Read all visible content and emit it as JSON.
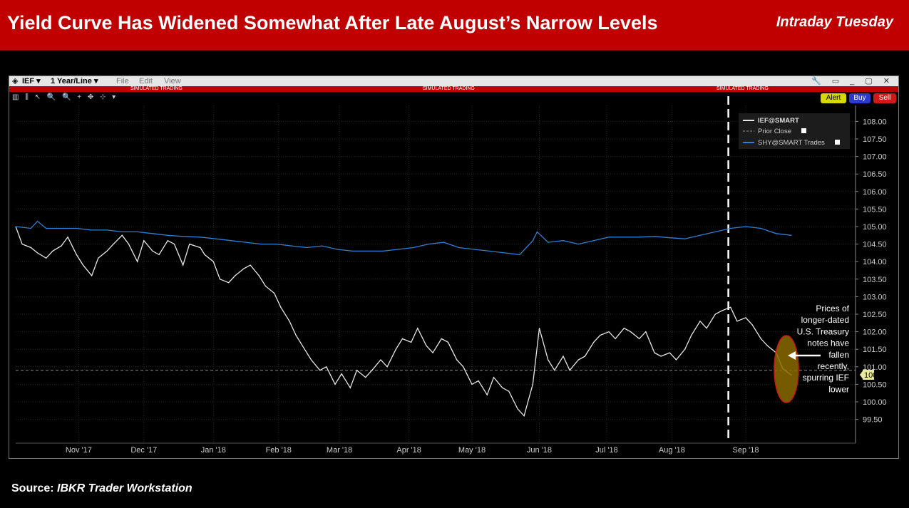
{
  "header": {
    "title": "Yield Curve Has Widened Somewhat After Late August’s Narrow Levels",
    "tag": "Intraday Tuesday"
  },
  "window": {
    "symbol": "IEF",
    "period": "1 Year/Line",
    "menu": [
      "File",
      "Edit",
      "View"
    ],
    "sim_label": "SIMULATED TRADING",
    "buttons": {
      "alert": "Alert",
      "buy": "Buy",
      "sell": "Sell"
    },
    "colors": {
      "header": "#c00000",
      "ief": "#e8e8e8",
      "shy": "#2f7fd6",
      "highlight": "#b08800"
    }
  },
  "source": {
    "prefix": "Source:",
    "name": "IBKR Trader Workstation"
  },
  "chart_data": {
    "type": "line",
    "x_start": "2017-10-03",
    "x_end": "2018-09-25",
    "xticks": [
      {
        "date": "2017-11-01",
        "label": "Nov '17"
      },
      {
        "date": "2017-12-01",
        "label": "Dec '17"
      },
      {
        "date": "2018-01-02",
        "label": "Jan '18"
      },
      {
        "date": "2018-02-01",
        "label": "Feb '18"
      },
      {
        "date": "2018-03-01",
        "label": "Mar '18"
      },
      {
        "date": "2018-04-02",
        "label": "Apr '18"
      },
      {
        "date": "2018-05-01",
        "label": "May '18"
      },
      {
        "date": "2018-06-01",
        "label": "Jun '18"
      },
      {
        "date": "2018-07-02",
        "label": "Jul '18"
      },
      {
        "date": "2018-08-01",
        "label": "Aug '18"
      },
      {
        "date": "2018-09-04",
        "label": "Sep '18"
      }
    ],
    "yticks": [
      "99.50",
      "100.00",
      "100.50",
      "101.00",
      "101.50",
      "102.00",
      "102.50",
      "103.00",
      "103.50",
      "104.00",
      "104.50",
      "105.00",
      "105.50",
      "106.00",
      "106.50",
      "107.00",
      "107.50",
      "108.00"
    ],
    "ylim": [
      99,
      108.5
    ],
    "prior_close": 100.9,
    "last_value": "100.76",
    "vline_date": "2018-08-27",
    "legend": [
      {
        "name": "IEF@SMART",
        "style": "solid",
        "color": "#e8e8e8"
      },
      {
        "name": "Prior Close",
        "style": "dashed",
        "color": "#999999"
      },
      {
        "name": "SHY@SMART Trades",
        "style": "solid",
        "color": "#2f7fd6"
      }
    ],
    "annotation": "Prices of longer-dated U.S. Treasury notes have fallen recently, spurring IEF lower",
    "series": [
      {
        "name": "IEF@SMART",
        "color": "#e8e8e8",
        "points": [
          [
            "2017-10-03",
            105.0
          ],
          [
            "2017-10-06",
            104.5
          ],
          [
            "2017-10-10",
            104.4
          ],
          [
            "2017-10-13",
            104.25
          ],
          [
            "2017-10-17",
            104.1
          ],
          [
            "2017-10-20",
            104.3
          ],
          [
            "2017-10-24",
            104.45
          ],
          [
            "2017-10-27",
            104.7
          ],
          [
            "2017-10-31",
            104.2
          ],
          [
            "2017-11-03",
            103.9
          ],
          [
            "2017-11-07",
            103.6
          ],
          [
            "2017-11-10",
            104.1
          ],
          [
            "2017-11-14",
            104.3
          ],
          [
            "2017-11-17",
            104.5
          ],
          [
            "2017-11-21",
            104.75
          ],
          [
            "2017-11-24",
            104.5
          ],
          [
            "2017-11-28",
            104.0
          ],
          [
            "2017-12-01",
            104.6
          ],
          [
            "2017-12-05",
            104.3
          ],
          [
            "2017-12-08",
            104.2
          ],
          [
            "2017-12-12",
            104.6
          ],
          [
            "2017-12-15",
            104.5
          ],
          [
            "2017-12-19",
            103.9
          ],
          [
            "2017-12-22",
            104.5
          ],
          [
            "2017-12-27",
            104.4
          ],
          [
            "2017-12-29",
            104.2
          ],
          [
            "2018-01-02",
            104.0
          ],
          [
            "2018-01-05",
            103.5
          ],
          [
            "2018-01-09",
            103.4
          ],
          [
            "2018-01-12",
            103.6
          ],
          [
            "2018-01-16",
            103.8
          ],
          [
            "2018-01-19",
            103.9
          ],
          [
            "2018-01-23",
            103.6
          ],
          [
            "2018-01-26",
            103.3
          ],
          [
            "2018-01-30",
            103.1
          ],
          [
            "2018-02-02",
            102.7
          ],
          [
            "2018-02-06",
            102.3
          ],
          [
            "2018-02-09",
            101.9
          ],
          [
            "2018-02-13",
            101.5
          ],
          [
            "2018-02-16",
            101.2
          ],
          [
            "2018-02-20",
            100.9
          ],
          [
            "2018-02-23",
            101.0
          ],
          [
            "2018-02-27",
            100.5
          ],
          [
            "2018-03-02",
            100.8
          ],
          [
            "2018-03-06",
            100.4
          ],
          [
            "2018-03-09",
            100.9
          ],
          [
            "2018-03-13",
            100.7
          ],
          [
            "2018-03-16",
            100.9
          ],
          [
            "2018-03-20",
            101.2
          ],
          [
            "2018-03-23",
            101.0
          ],
          [
            "2018-03-27",
            101.5
          ],
          [
            "2018-03-30",
            101.8
          ],
          [
            "2018-04-03",
            101.7
          ],
          [
            "2018-04-06",
            102.1
          ],
          [
            "2018-04-10",
            101.6
          ],
          [
            "2018-04-13",
            101.4
          ],
          [
            "2018-04-17",
            101.8
          ],
          [
            "2018-04-20",
            101.7
          ],
          [
            "2018-04-24",
            101.2
          ],
          [
            "2018-04-27",
            101.0
          ],
          [
            "2018-05-01",
            100.5
          ],
          [
            "2018-05-04",
            100.6
          ],
          [
            "2018-05-08",
            100.2
          ],
          [
            "2018-05-11",
            100.7
          ],
          [
            "2018-05-15",
            100.4
          ],
          [
            "2018-05-18",
            100.3
          ],
          [
            "2018-05-22",
            99.8
          ],
          [
            "2018-05-25",
            99.6
          ],
          [
            "2018-05-29",
            100.5
          ],
          [
            "2018-06-01",
            102.1
          ],
          [
            "2018-06-05",
            101.2
          ],
          [
            "2018-06-08",
            100.9
          ],
          [
            "2018-06-12",
            101.3
          ],
          [
            "2018-06-15",
            100.9
          ],
          [
            "2018-06-19",
            101.2
          ],
          [
            "2018-06-22",
            101.3
          ],
          [
            "2018-06-26",
            101.7
          ],
          [
            "2018-06-29",
            101.9
          ],
          [
            "2018-07-03",
            102.0
          ],
          [
            "2018-07-06",
            101.8
          ],
          [
            "2018-07-10",
            102.1
          ],
          [
            "2018-07-13",
            102.0
          ],
          [
            "2018-07-17",
            101.8
          ],
          [
            "2018-07-20",
            102.0
          ],
          [
            "2018-07-24",
            101.4
          ],
          [
            "2018-07-27",
            101.3
          ],
          [
            "2018-07-31",
            101.4
          ],
          [
            "2018-08-03",
            101.2
          ],
          [
            "2018-08-07",
            101.5
          ],
          [
            "2018-08-10",
            101.9
          ],
          [
            "2018-08-14",
            102.3
          ],
          [
            "2018-08-17",
            102.1
          ],
          [
            "2018-08-21",
            102.5
          ],
          [
            "2018-08-24",
            102.6
          ],
          [
            "2018-08-28",
            102.7
          ],
          [
            "2018-08-31",
            102.3
          ],
          [
            "2018-09-04",
            102.4
          ],
          [
            "2018-09-07",
            102.2
          ],
          [
            "2018-09-11",
            101.8
          ],
          [
            "2018-09-14",
            101.6
          ],
          [
            "2018-09-18",
            101.4
          ],
          [
            "2018-09-21",
            100.95
          ],
          [
            "2018-09-25",
            100.76
          ]
        ]
      },
      {
        "name": "SHY@SMART Trades",
        "color": "#2f7fd6",
        "points": [
          [
            "2017-10-03",
            105.0
          ],
          [
            "2017-10-10",
            104.95
          ],
          [
            "2017-10-13",
            105.15
          ],
          [
            "2017-10-17",
            104.95
          ],
          [
            "2017-10-24",
            104.95
          ],
          [
            "2017-10-31",
            104.95
          ],
          [
            "2017-11-07",
            104.9
          ],
          [
            "2017-11-14",
            104.9
          ],
          [
            "2017-11-21",
            104.85
          ],
          [
            "2017-11-28",
            104.85
          ],
          [
            "2017-12-05",
            104.8
          ],
          [
            "2017-12-12",
            104.75
          ],
          [
            "2017-12-19",
            104.72
          ],
          [
            "2017-12-27",
            104.7
          ],
          [
            "2018-01-03",
            104.65
          ],
          [
            "2018-01-10",
            104.6
          ],
          [
            "2018-01-17",
            104.55
          ],
          [
            "2018-01-24",
            104.5
          ],
          [
            "2018-01-31",
            104.5
          ],
          [
            "2018-02-07",
            104.45
          ],
          [
            "2018-02-14",
            104.4
          ],
          [
            "2018-02-21",
            104.45
          ],
          [
            "2018-02-28",
            104.35
          ],
          [
            "2018-03-07",
            104.3
          ],
          [
            "2018-03-14",
            104.3
          ],
          [
            "2018-03-21",
            104.3
          ],
          [
            "2018-03-28",
            104.35
          ],
          [
            "2018-04-04",
            104.4
          ],
          [
            "2018-04-11",
            104.5
          ],
          [
            "2018-04-18",
            104.55
          ],
          [
            "2018-04-25",
            104.4
          ],
          [
            "2018-05-02",
            104.35
          ],
          [
            "2018-05-09",
            104.3
          ],
          [
            "2018-05-16",
            104.25
          ],
          [
            "2018-05-23",
            104.2
          ],
          [
            "2018-05-29",
            104.6
          ],
          [
            "2018-05-31",
            104.85
          ],
          [
            "2018-06-05",
            104.55
          ],
          [
            "2018-06-12",
            104.6
          ],
          [
            "2018-06-19",
            104.5
          ],
          [
            "2018-06-26",
            104.6
          ],
          [
            "2018-07-03",
            104.7
          ],
          [
            "2018-07-10",
            104.7
          ],
          [
            "2018-07-17",
            104.7
          ],
          [
            "2018-07-24",
            104.72
          ],
          [
            "2018-07-31",
            104.68
          ],
          [
            "2018-08-07",
            104.65
          ],
          [
            "2018-08-14",
            104.75
          ],
          [
            "2018-08-21",
            104.85
          ],
          [
            "2018-08-28",
            104.95
          ],
          [
            "2018-09-04",
            105.0
          ],
          [
            "2018-09-11",
            104.95
          ],
          [
            "2018-09-18",
            104.8
          ],
          [
            "2018-09-25",
            104.75
          ]
        ]
      }
    ]
  }
}
